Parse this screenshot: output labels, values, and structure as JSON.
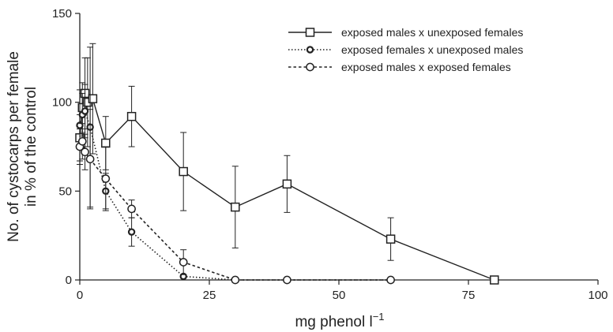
{
  "chart_data": {
    "type": "line",
    "xlabel": "mg phenol l",
    "xlabel_superscript": "−1",
    "ylabel_line1": "No. of cystocarps per female",
    "ylabel_line2": "in % of the control",
    "xlim": [
      0,
      100
    ],
    "ylim": [
      0,
      150
    ],
    "x_ticks": [
      0,
      25,
      50,
      75,
      100
    ],
    "y_ticks": [
      0,
      50,
      100,
      150
    ],
    "grid": false,
    "legend_position": "top-right",
    "series": [
      {
        "name": "exposed males x unexposed females",
        "line_style": "solid",
        "marker": "square",
        "points": [
          {
            "x": 0,
            "y": 80,
            "err": 13
          },
          {
            "x": 0.5,
            "y": 97,
            "err": 14
          },
          {
            "x": 1,
            "y": 105,
            "err": 20
          },
          {
            "x": 1.5,
            "y": 100,
            "err": 25
          },
          {
            "x": 2.5,
            "y": 102,
            "err": 31
          },
          {
            "x": 5,
            "y": 77,
            "err": 15
          },
          {
            "x": 10,
            "y": 92,
            "err": 17
          },
          {
            "x": 20,
            "y": 61,
            "err": 22
          },
          {
            "x": 30,
            "y": 41,
            "err": 23
          },
          {
            "x": 40,
            "y": 54,
            "err": 16
          },
          {
            "x": 60,
            "y": 23,
            "err": 12
          },
          {
            "x": 80,
            "y": 0,
            "err": 0
          }
        ]
      },
      {
        "name": "exposed females x unexposed males",
        "line_style": "dotted",
        "marker": "diamond",
        "points": [
          {
            "x": 0,
            "y": 87,
            "err": 20
          },
          {
            "x": 0.5,
            "y": 93,
            "err": 12
          },
          {
            "x": 1,
            "y": 95,
            "err": 15
          },
          {
            "x": 2,
            "y": 86,
            "err": 45
          },
          {
            "x": 5,
            "y": 50,
            "err": 10
          },
          {
            "x": 10,
            "y": 27,
            "err": 8
          },
          {
            "x": 20,
            "y": 2,
            "err": 0
          },
          {
            "x": 30,
            "y": 0,
            "err": 0
          },
          {
            "x": 40,
            "y": 0,
            "err": 0
          },
          {
            "x": 60,
            "y": 0,
            "err": 0
          }
        ]
      },
      {
        "name": "exposed males x exposed females",
        "line_style": "dashed",
        "marker": "circle",
        "points": [
          {
            "x": 0,
            "y": 75,
            "err": 10
          },
          {
            "x": 0.5,
            "y": 78,
            "err": 10
          },
          {
            "x": 1,
            "y": 72,
            "err": 10
          },
          {
            "x": 2,
            "y": 68,
            "err": 28
          },
          {
            "x": 5,
            "y": 57,
            "err": 18
          },
          {
            "x": 10,
            "y": 40,
            "err": 5
          },
          {
            "x": 20,
            "y": 10,
            "err": 7
          },
          {
            "x": 30,
            "y": 0,
            "err": 0
          },
          {
            "x": 40,
            "y": 0,
            "err": 0
          },
          {
            "x": 60,
            "y": 0,
            "err": 0
          }
        ]
      }
    ]
  }
}
